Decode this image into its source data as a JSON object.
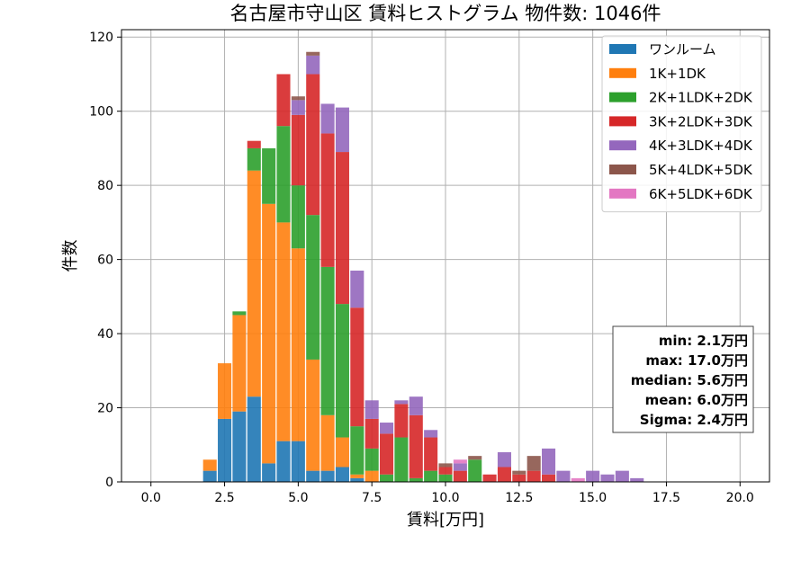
{
  "chart_data": {
    "type": "bar",
    "stacked": true,
    "title": "名古屋市守山区 賃料ヒストグラム 物件数: 1046件",
    "xlabel": "賃料[万円]",
    "ylabel": "件数",
    "xlim": [
      -1.0,
      21.0
    ],
    "ylim": [
      0,
      122
    ],
    "xticks": [
      0.0,
      2.5,
      5.0,
      7.5,
      10.0,
      12.5,
      15.0,
      17.5,
      20.0
    ],
    "xtick_labels": [
      "0.0",
      "2.5",
      "5.0",
      "7.5",
      "10.0",
      "12.5",
      "15.0",
      "17.5",
      "20.0"
    ],
    "yticks": [
      0,
      20,
      40,
      60,
      80,
      100,
      120
    ],
    "ytick_labels": [
      "0",
      "20",
      "40",
      "60",
      "80",
      "100",
      "120"
    ],
    "grid": true,
    "legend_position": "top-right",
    "bin_width": 0.5,
    "x": [
      2.0,
      2.5,
      3.0,
      3.5,
      4.0,
      4.5,
      5.0,
      5.5,
      6.0,
      6.5,
      7.0,
      7.5,
      8.0,
      8.5,
      9.0,
      9.5,
      10.0,
      10.5,
      11.0,
      11.5,
      12.0,
      12.5,
      13.0,
      13.5,
      14.0,
      14.5,
      15.0,
      15.5,
      16.0,
      16.5,
      17.0
    ],
    "series": [
      {
        "name": "ワンルーム",
        "color": "#1f77b4",
        "values": [
          3,
          17,
          19,
          23,
          5,
          11,
          11,
          3,
          3,
          4,
          1,
          0,
          0,
          0,
          0,
          0,
          0,
          0,
          0,
          0,
          0,
          0,
          0,
          0,
          0,
          0,
          0,
          0,
          0,
          0,
          0
        ]
      },
      {
        "name": "1K+1DK",
        "color": "#ff7f0e",
        "values": [
          3,
          15,
          26,
          61,
          70,
          59,
          52,
          30,
          15,
          8,
          1,
          3,
          0,
          0,
          0,
          0,
          0,
          0,
          0,
          0,
          0,
          0,
          0,
          0,
          0,
          0,
          0,
          0,
          0,
          0,
          0
        ]
      },
      {
        "name": "2K+1LDK+2DK",
        "color": "#2ca02c",
        "values": [
          0,
          0,
          1,
          6,
          15,
          26,
          17,
          39,
          40,
          36,
          13,
          6,
          2,
          12,
          1,
          3,
          2,
          0,
          6,
          0,
          0,
          0,
          0,
          0,
          0,
          0,
          0,
          0,
          0,
          0,
          0
        ]
      },
      {
        "name": "3K+2LDK+3DK",
        "color": "#d62728",
        "values": [
          0,
          0,
          0,
          2,
          0,
          14,
          19,
          38,
          36,
          41,
          32,
          8,
          11,
          9,
          17,
          9,
          2,
          3,
          0,
          2,
          4,
          2,
          3,
          2,
          0,
          0,
          0,
          0,
          0,
          0,
          0
        ]
      },
      {
        "name": "4K+3LDK+4DK",
        "color": "#9467bd",
        "values": [
          0,
          0,
          0,
          0,
          0,
          0,
          4,
          5,
          8,
          12,
          10,
          5,
          3,
          1,
          5,
          2,
          0,
          2,
          0,
          0,
          4,
          0,
          0,
          7,
          3,
          0,
          3,
          2,
          3,
          1,
          0
        ]
      },
      {
        "name": "5K+4LDK+5DK",
        "color": "#8c564b",
        "values": [
          0,
          0,
          0,
          0,
          0,
          0,
          1,
          1,
          0,
          0,
          0,
          0,
          0,
          0,
          0,
          0,
          1,
          0,
          1,
          0,
          0,
          1,
          4,
          0,
          0,
          0,
          0,
          0,
          0,
          0,
          0
        ]
      },
      {
        "name": "6K+5LDK+6DK",
        "color": "#e377c2",
        "values": [
          0,
          0,
          0,
          0,
          0,
          0,
          0,
          0,
          0,
          0,
          0,
          0,
          0,
          0,
          0,
          0,
          0,
          1,
          0,
          0,
          0,
          0,
          0,
          0,
          0,
          1,
          0,
          0,
          0,
          0,
          0
        ]
      }
    ],
    "stats_box": [
      "min: 2.1万円",
      "max: 17.0万円",
      "median: 5.6万円",
      "mean: 6.0万円",
      "Sigma: 2.4万円"
    ],
    "colors": {
      "grid": "#b0b0b0",
      "axes": "#000000",
      "legend_border": "#cccccc",
      "stats_border": "#444444"
    }
  }
}
